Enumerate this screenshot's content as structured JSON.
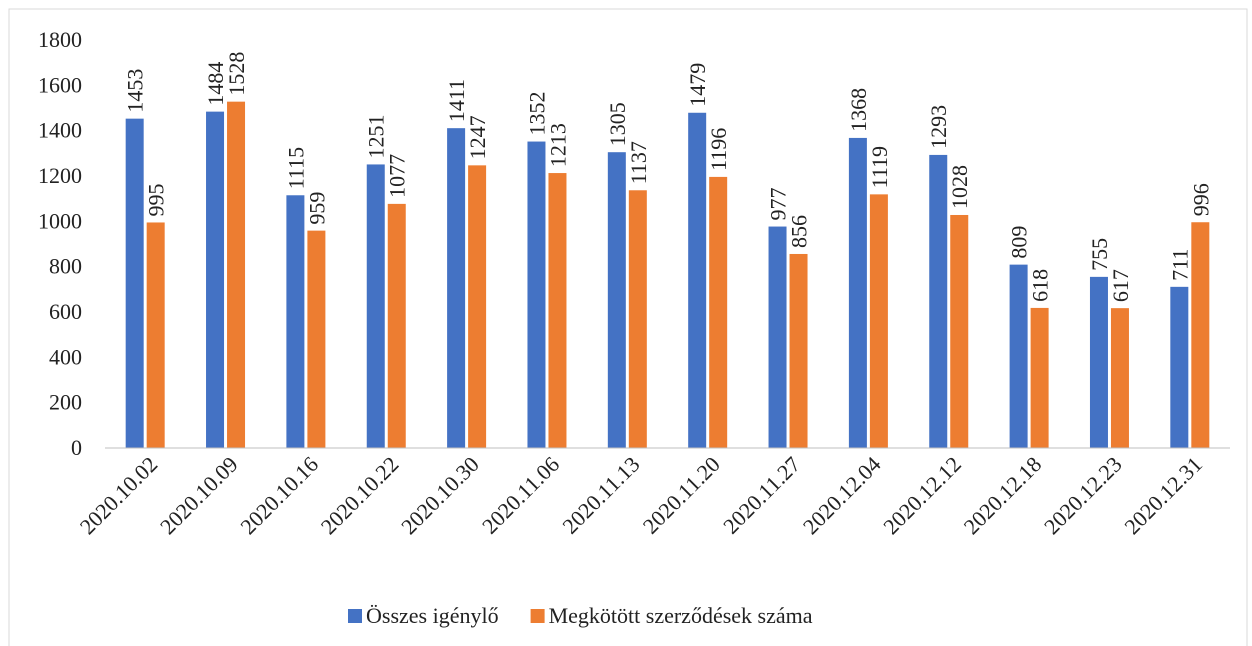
{
  "chart_data": {
    "type": "bar",
    "categories": [
      "2020.10.02",
      "2020.10.09",
      "2020.10.16",
      "2020.10.22",
      "2020.10.30",
      "2020.11.06",
      "2020.11.13",
      "2020.11.20",
      "2020.11.27",
      "2020.12.04",
      "2020.12.12",
      "2020.12.18",
      "2020.12.23",
      "2020.12.31"
    ],
    "series": [
      {
        "name": "Összes igénylő",
        "color": "#4472c4",
        "values": [
          1453,
          1484,
          1115,
          1251,
          1411,
          1352,
          1305,
          1479,
          977,
          1368,
          1293,
          809,
          755,
          711
        ]
      },
      {
        "name": "Megkötött szerződések száma",
        "color": "#ed7d31",
        "values": [
          995,
          1528,
          959,
          1077,
          1247,
          1213,
          1137,
          1196,
          856,
          1119,
          1028,
          618,
          617,
          996
        ]
      }
    ],
    "ylim": [
      0,
      1800
    ],
    "yticks": [
      0,
      200,
      400,
      600,
      800,
      1000,
      1200,
      1400,
      1600,
      1800
    ],
    "grid": false,
    "legend": "bottom"
  }
}
